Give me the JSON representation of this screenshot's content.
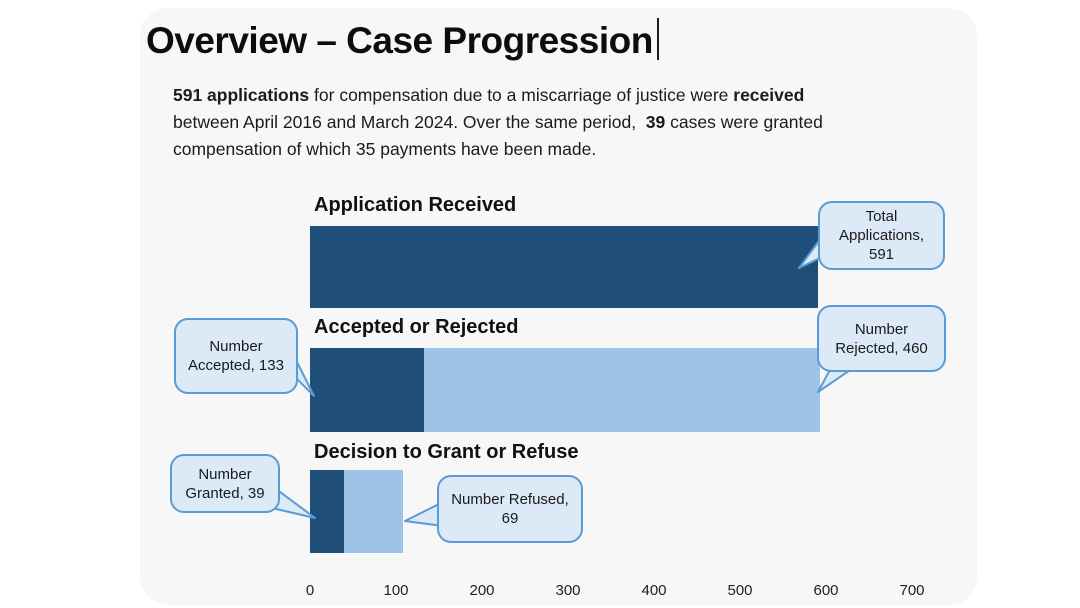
{
  "slide": {
    "title": "Overview – Case Progression",
    "intro_lines": [
      [
        {
          "text": "591 applications",
          "bold": true
        },
        {
          "text": " for compensation due to a miscarriage of justice were ",
          "bold": false
        },
        {
          "text": "received",
          "bold": true
        }
      ],
      [
        {
          "text": "between April 2016 and March 2024. Over the same period,  ",
          "bold": false
        },
        {
          "text": "39",
          "bold": true
        },
        {
          "text": " cases were granted",
          "bold": false
        }
      ],
      [
        {
          "text": "compensation of which 35 payments have been made.",
          "bold": false
        }
      ]
    ]
  },
  "colors": {
    "dark_blue": "#1F4E79",
    "light_blue": "#9DC3E6",
    "callout_fill": "#DCE9F7",
    "callout_border": "#5B9BD5",
    "card_background": "#F7F7F7"
  },
  "chart_data": {
    "type": "bar",
    "orientation": "horizontal",
    "x_axis": {
      "min": 0,
      "max": 700,
      "ticks": [
        "0",
        "100",
        "200",
        "300",
        "400",
        "500",
        "600",
        "700"
      ]
    },
    "grid": false,
    "legend": null,
    "sections": [
      {
        "label": "Application Received",
        "segments": [
          {
            "name": "Total Applications",
            "value": 591,
            "color": "dark_blue"
          }
        ]
      },
      {
        "label": "Accepted or Rejected",
        "segments": [
          {
            "name": "Number Accepted",
            "value": 133,
            "color": "dark_blue"
          },
          {
            "name": "Number Rejected",
            "value": 460,
            "color": "light_blue"
          }
        ]
      },
      {
        "label": "Decision to Grant or Refuse",
        "segments": [
          {
            "name": "Number Granted",
            "value": 39,
            "color": "dark_blue"
          },
          {
            "name": "Number Refused",
            "value": 69,
            "color": "light_blue"
          }
        ]
      }
    ],
    "callouts": [
      {
        "text": "Total Applications, 591"
      },
      {
        "text": "Number Accepted, 133"
      },
      {
        "text": "Number Rejected, 460"
      },
      {
        "text": "Number Granted, 39"
      },
      {
        "text": "Number Refused, 69"
      }
    ]
  }
}
